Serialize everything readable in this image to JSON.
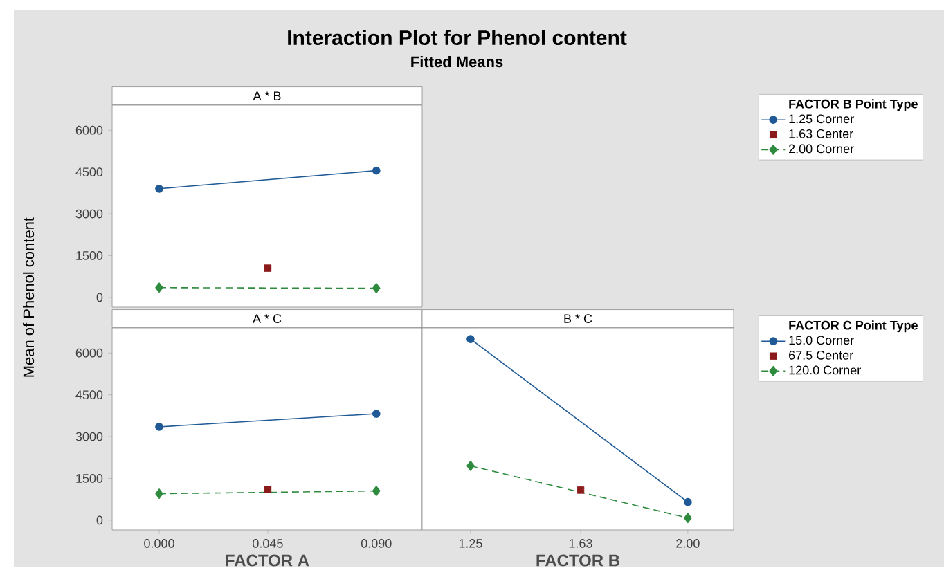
{
  "chart_data": [
    {
      "type": "line",
      "title": "Interaction Plot for Phenol content",
      "subtitle": "Fitted Means",
      "annotations": [
        "A * B"
      ],
      "legend_title": "FACTOR  B Point Type",
      "legend": "right",
      "tick_labels": "y",
      "xlim": [
        -0.0195,
        0.109
      ],
      "ylim": [
        -350,
        6900
      ],
      "yticks": [
        0,
        1500,
        3000,
        4500,
        6000
      ],
      "series": [
        {
          "name": "1.25 Corner",
          "color": "#1f5a96",
          "x": [
            0,
            0.09
          ],
          "values": [
            3900,
            4550
          ],
          "marker": "circle",
          "line_style": "solid"
        },
        {
          "name": "1.63 Center",
          "color": "#8b1a1a",
          "type": "scatter",
          "x": [
            0.045
          ],
          "values": [
            1050
          ],
          "marker": "square"
        },
        {
          "name": "2.00 Corner",
          "color": "#2e8b3e",
          "x": [
            0,
            0.09
          ],
          "values": [
            350,
            330
          ],
          "marker": "diamond",
          "line_style": "dashed"
        }
      ]
    },
    {
      "type": "line",
      "title": "A * C",
      "xlabel": "FACTOR  A",
      "ylabel": "Mean of Phenol content",
      "xlim": [
        -0.0195,
        0.109
      ],
      "xticks": [
        {
          "value": 0,
          "label": "0.000"
        },
        {
          "value": 0.045,
          "label": "0.045"
        },
        {
          "value": 0.09,
          "label": "0.090"
        }
      ],
      "ylim": [
        -350,
        6900
      ],
      "yticks": [
        0,
        1500,
        3000,
        4500,
        6000
      ],
      "series": [
        {
          "color": "#1f5a96",
          "x": [
            0,
            0.09
          ],
          "values": [
            3350,
            3820
          ],
          "marker": "circle",
          "line_style": "solid"
        },
        {
          "color": "#8b1a1a",
          "type": "scatter",
          "x": [
            0.045
          ],
          "values": [
            1100
          ],
          "marker": "square"
        },
        {
          "color": "#2e8b3e",
          "x": [
            0,
            0.09
          ],
          "values": [
            950,
            1050
          ],
          "marker": "diamond",
          "line_style": "dashed"
        }
      ]
    },
    {
      "type": "line",
      "title": "B * C",
      "xlabel": "FACTOR  B",
      "legend_title": "FACTOR  C Point Type",
      "legend": "right",
      "tick_labels": "x",
      "xlim": [
        1.083,
        2.158
      ],
      "xticks": [
        1.25,
        1.63,
        {
          "value": 2.0,
          "label": "2.00"
        }
      ],
      "ylim": [
        -350,
        6900
      ],
      "yticks": [
        0,
        1500,
        3000,
        4500,
        6000
      ],
      "series": [
        {
          "name": "15.0 Corner",
          "color": "#1f5a96",
          "x": [
            1.25,
            2.0
          ],
          "values": [
            6500,
            650
          ],
          "marker": "circle",
          "line_style": "solid"
        },
        {
          "name": "67.5 Center",
          "color": "#8b1a1a",
          "type": "scatter",
          "x": [
            1.63
          ],
          "values": [
            1080
          ],
          "marker": "square"
        },
        {
          "name": "120.0 Corner",
          "color": "#2e8b3e",
          "x": [
            1.25,
            2.0
          ],
          "values": [
            1950,
            80
          ],
          "marker": "diamond",
          "line_style": "dashed"
        }
      ]
    }
  ]
}
